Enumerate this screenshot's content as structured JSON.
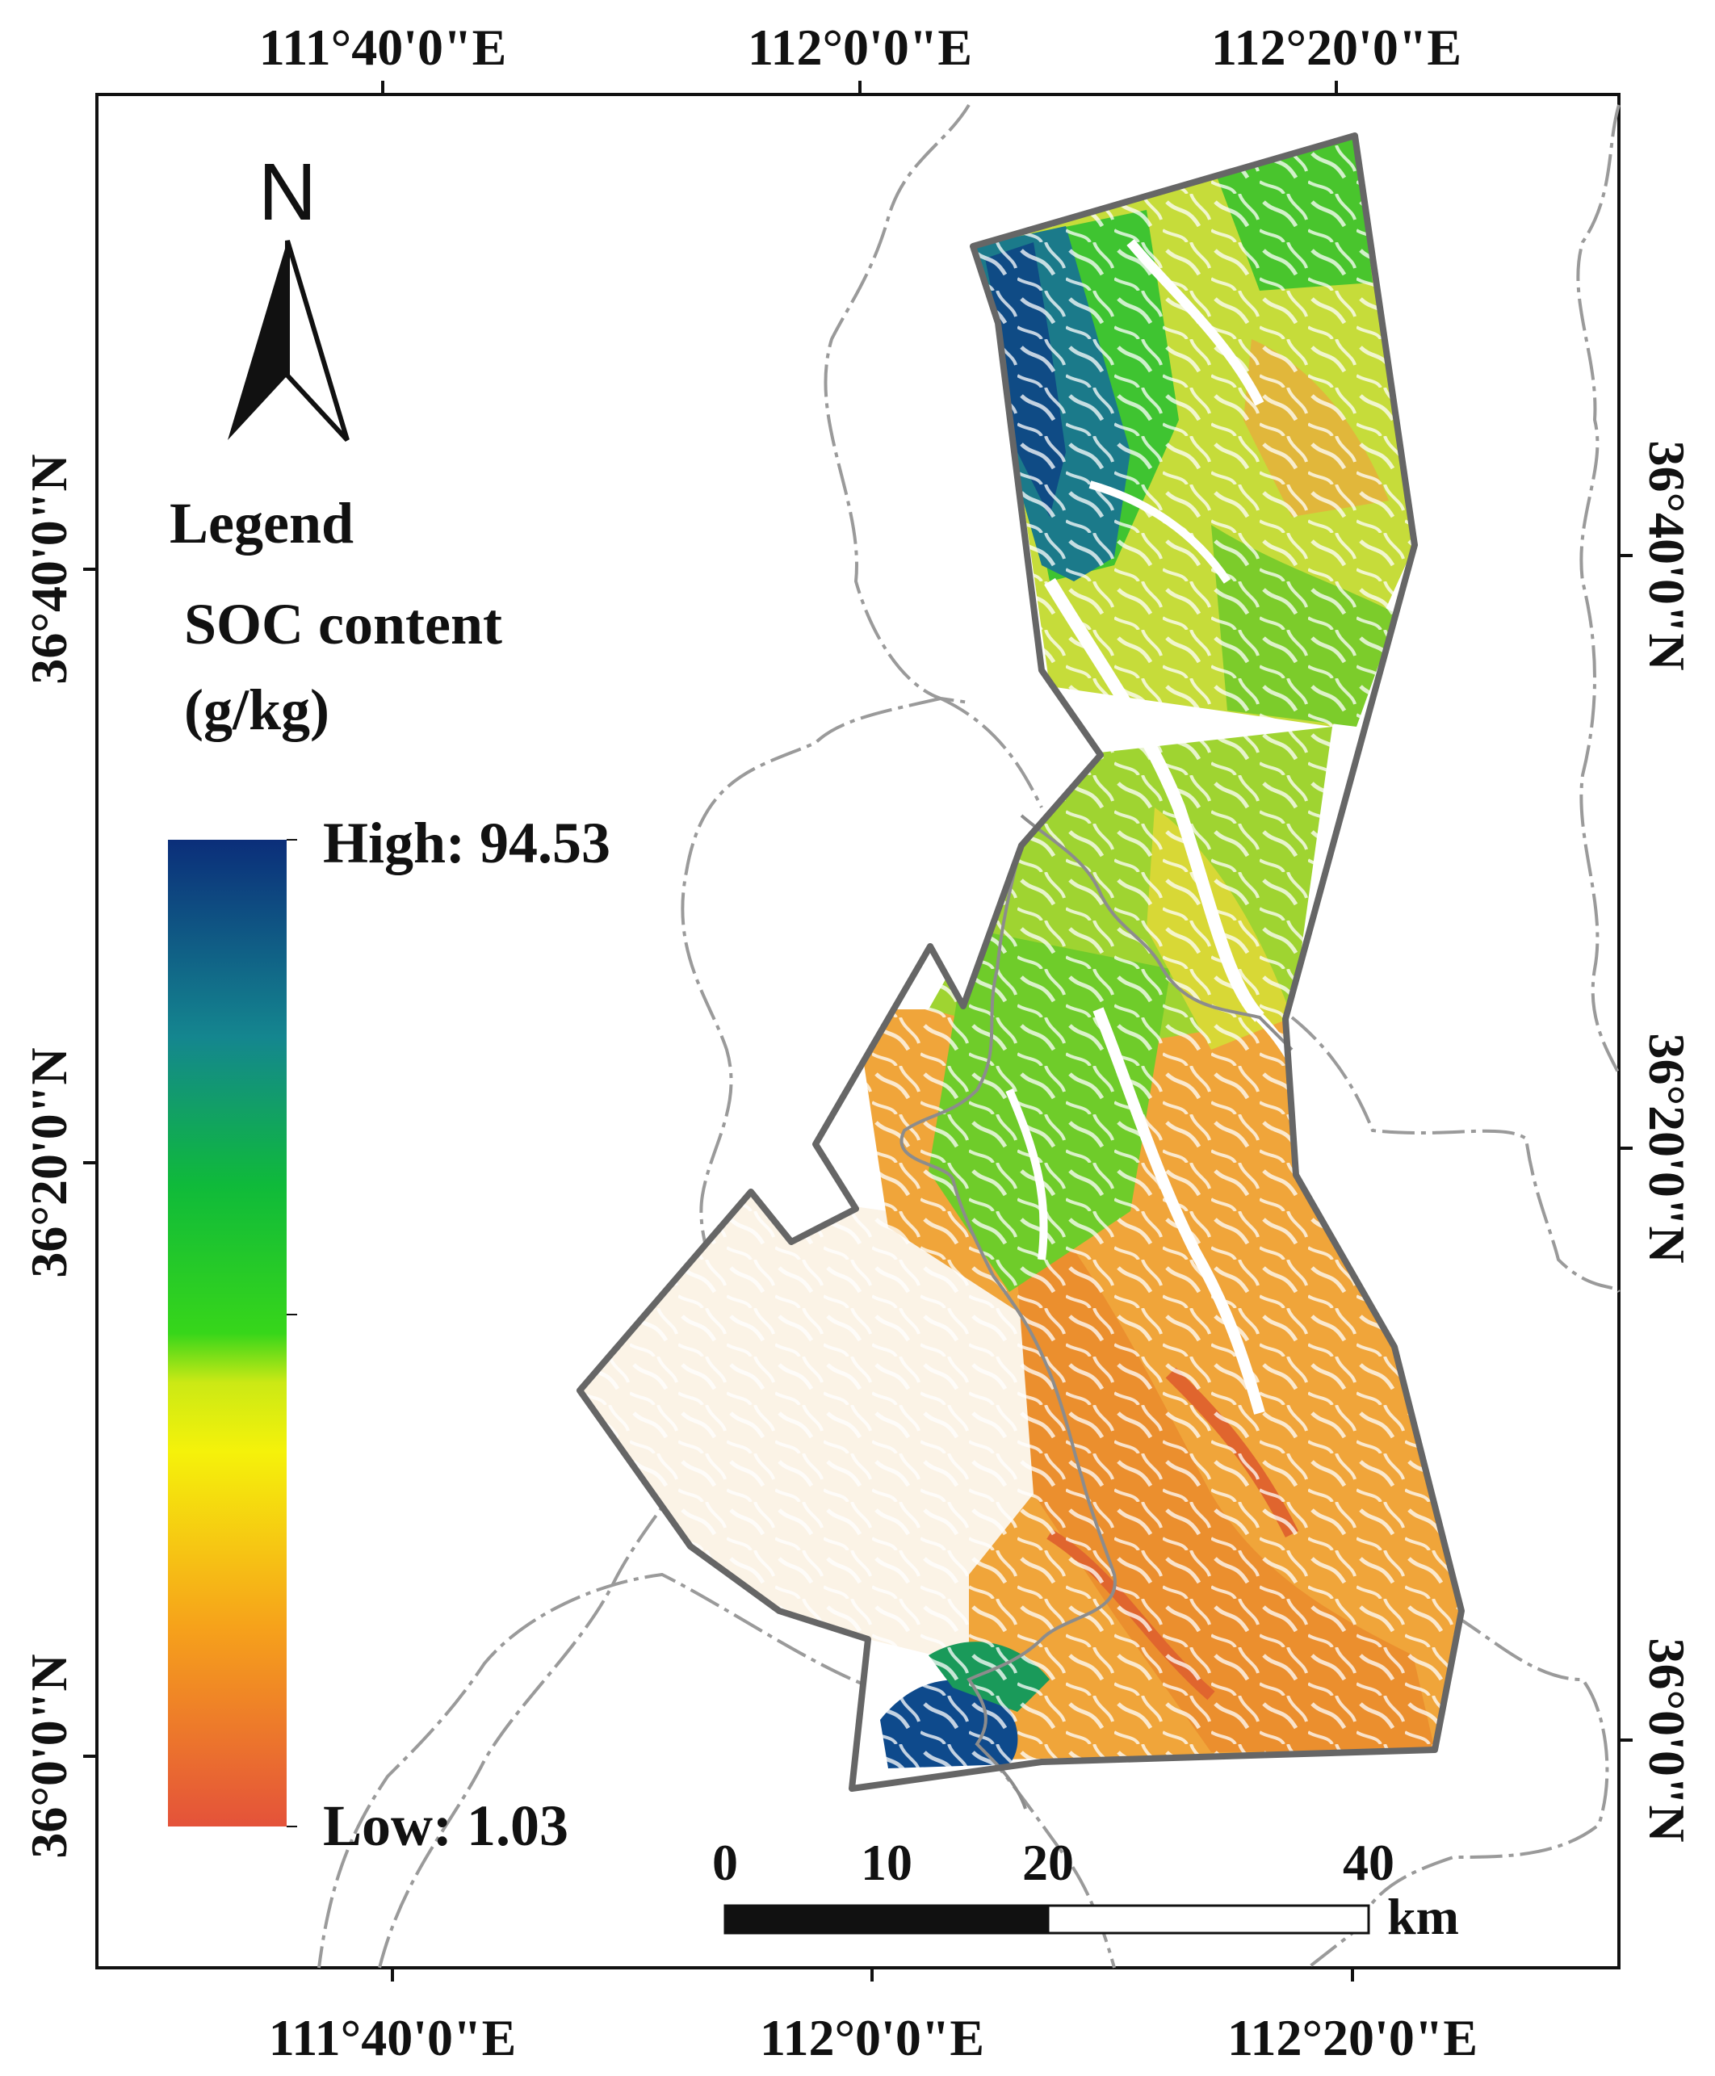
{
  "map": {
    "coords_top": [
      "111°40'0\"E",
      "112°0'0\"E",
      "112°20'0\"E"
    ],
    "coords_bottom": [
      "111°40'0\"E",
      "112°0'0\"E",
      "112°20'0\"E"
    ],
    "coords_left": [
      "36°40'0\"N",
      "36°20'0\"N",
      "36°0'0\"N"
    ],
    "coords_right": [
      "36°40'0\"N",
      "36°20'0\"N",
      "36°0'0\"N"
    ]
  },
  "north_arrow": {
    "label": "N"
  },
  "legend": {
    "title": "Legend",
    "variable_line1": "SOC content",
    "variable_line2": "(g/kg)",
    "high_label": "High: 94.53",
    "low_label": "Low: 1.03",
    "high_value": 94.53,
    "low_value": 1.03,
    "colors": [
      "#0b2e7a",
      "#14868f",
      "#0fba3a",
      "#37d61a",
      "#f5f20a",
      "#f6a11b",
      "#e4523a"
    ]
  },
  "scale_bar": {
    "ticks": [
      "0",
      "10",
      "20",
      "40"
    ],
    "unit": "km"
  }
}
